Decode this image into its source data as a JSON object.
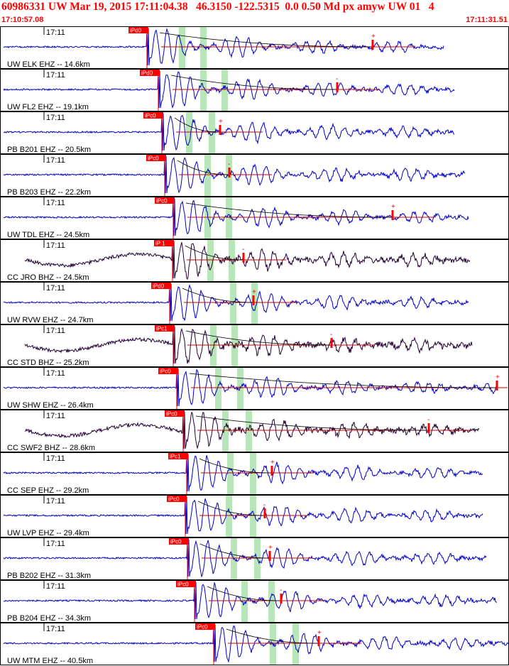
{
  "header": {
    "title": "60986331 UW Mar 19, 2015 17:11:04.38   46.3150 -122.5315  0.0 0.50 Md px amyw UW 01   4",
    "start_time": "17:10:57.08",
    "end_time": "17:11:31.51"
  },
  "colors": {
    "header_text": "#ff0000",
    "trace_short_period": "#0000cc",
    "trace_broadband": "#220033",
    "pick": "#ff0000",
    "coda_fit": "#000000",
    "coda_level": "#cc0000",
    "shade": "#b8e6b8",
    "border": "#000000"
  },
  "chart_data": {
    "type": "line",
    "title": "60986331 UW Mar 19, 2015 17:11:04.38   46.3150 -122.5315  0.0 0.50 Md px amyw UW 01   4",
    "xlabel": "",
    "ylabel": "",
    "x_range": [
      "17:10:57.08",
      "17:11:31.51"
    ],
    "tick_label": "17:11",
    "series": [
      {
        "label": "UW ELK EHZ -- 14.6km",
        "pick": "iPd0",
        "kind": "short-period"
      },
      {
        "label": "UW FL2 EHZ -- 19.1km",
        "pick": "iPd0",
        "kind": "short-period"
      },
      {
        "label": "PB B201 EHZ -- 20.5km",
        "pick": "iPc0",
        "kind": "short-period"
      },
      {
        "label": "PB B203 EHZ -- 22.2km",
        "pick": "iPc0",
        "kind": "short-period"
      },
      {
        "label": "UW TDL EHZ -- 24.5km",
        "pick": "iPc0",
        "kind": "short-period"
      },
      {
        "label": "CC JRO BHZ -- 24.5km",
        "pick": "iP 1",
        "kind": "broadband"
      },
      {
        "label": "UW RVW EHZ -- 24.7km",
        "pick": "iPd0",
        "kind": "short-period"
      },
      {
        "label": "CC STD BHZ -- 25.2km",
        "pick": "iPc1",
        "kind": "broadband"
      },
      {
        "label": "UW SHW EHZ -- 26.4km",
        "pick": "iPc0",
        "kind": "short-period"
      },
      {
        "label": "CC SWF2 BHZ -- 28.6km",
        "pick": "iPc0",
        "kind": "broadband"
      },
      {
        "label": "CC SEP EHZ -- 29.2km",
        "pick": "iPc1",
        "kind": "short-period"
      },
      {
        "label": "UW LVP EHZ -- 29.4km",
        "pick": "iPc0",
        "kind": "short-period"
      },
      {
        "label": "PB B202 EHZ -- 31.3km",
        "pick": "iPc0",
        "kind": "short-period"
      },
      {
        "label": "PB B204 EHZ -- 34.3km",
        "pick": "iPc0",
        "kind": "short-period"
      },
      {
        "label": "UW MTM EHZ -- 40.5km",
        "pick": "iPc0",
        "kind": "short-period"
      }
    ]
  }
}
